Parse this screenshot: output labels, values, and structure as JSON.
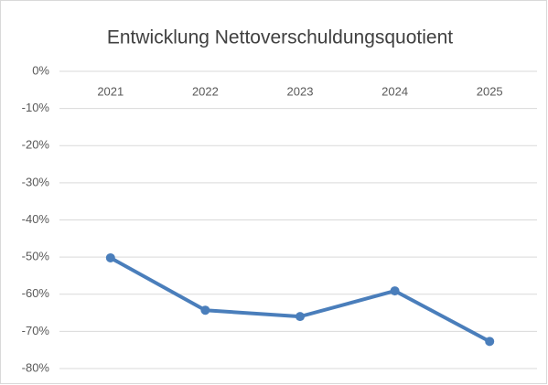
{
  "chart_data": {
    "type": "line",
    "title": "Entwicklung Nettoverschuldungsquotient",
    "categories": [
      "2021",
      "2022",
      "2023",
      "2024",
      "2025"
    ],
    "series": [
      {
        "name": "Nettoverschuldungsquotient",
        "color": "#4a7ebb",
        "values": [
          -50.2,
          -64.3,
          -66,
          -59.1,
          -72.7
        ]
      }
    ],
    "ylim": [
      -80,
      0
    ],
    "yticks": [
      {
        "value": 0,
        "label": "0%"
      },
      {
        "value": -10,
        "label": "-10%"
      },
      {
        "value": -20,
        "label": "-20%"
      },
      {
        "value": -30,
        "label": "-30%"
      },
      {
        "value": -40,
        "label": "-40%"
      },
      {
        "value": -50,
        "label": "-50%"
      },
      {
        "value": -60,
        "label": "-60%"
      },
      {
        "value": -70,
        "label": "-70%"
      },
      {
        "value": -80,
        "label": "-80%"
      }
    ],
    "grid": true
  }
}
